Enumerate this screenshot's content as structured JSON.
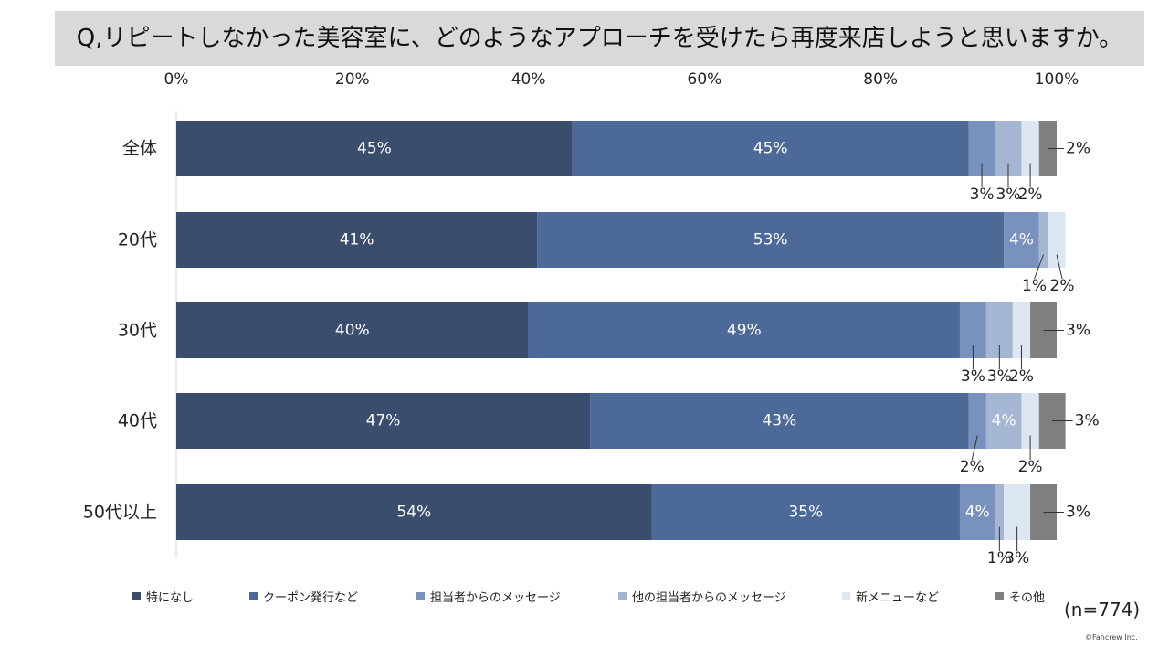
{
  "title": "Q,リピートしなかった美容室に、どのようなアプローチを受けたら再度来店しようと思いますか。",
  "sample_size": "(n=774)",
  "copyright": "©Fancrew Inc.",
  "chart_data": {
    "type": "bar",
    "orientation": "horizontal",
    "stacked": "100%",
    "title": "Q,リピートしなかった美容室に、どのようなアプローチを受けたら再度来店しようと思いますか。",
    "xlim": [
      0,
      100
    ],
    "x_ticks": [
      "0%",
      "20%",
      "40%",
      "60%",
      "80%",
      "100%"
    ],
    "grid": false,
    "legend_position": "bottom",
    "categories": [
      "全体",
      "20代",
      "30代",
      "40代",
      "50代以上"
    ],
    "series": [
      {
        "name": "特になし",
        "color": "#3a4d6d",
        "values": [
          45,
          41,
          40,
          47,
          54
        ]
      },
      {
        "name": "クーポン発行など",
        "color": "#4c6997",
        "values": [
          45,
          53,
          49,
          43,
          35
        ]
      },
      {
        "name": "担当者からのメッセージ",
        "color": "#7891bd",
        "values": [
          3,
          4,
          3,
          2,
          4
        ]
      },
      {
        "name": "他の担当者からのメッセージ",
        "color": "#a4b6d2",
        "values": [
          3,
          1,
          3,
          4,
          1
        ]
      },
      {
        "name": "新メニューなど",
        "color": "#dde7f3",
        "values": [
          2,
          2,
          2,
          2,
          3
        ]
      },
      {
        "name": "その他",
        "color": "#7f7f7f",
        "values": [
          2,
          0,
          3,
          3,
          3
        ]
      }
    ],
    "data_labels": [
      [
        "45%",
        "45%",
        "3%",
        "3%",
        "2%",
        "2%"
      ],
      [
        "41%",
        "53%",
        "4%",
        "1%",
        "2%",
        ""
      ],
      [
        "40%",
        "49%",
        "3%",
        "3%",
        "2%",
        "3%"
      ],
      [
        "47%",
        "43%",
        "2%",
        "4%",
        "2%",
        "3%"
      ],
      [
        "54%",
        "35%",
        "4%",
        "1%",
        "3%",
        "3%"
      ]
    ]
  }
}
